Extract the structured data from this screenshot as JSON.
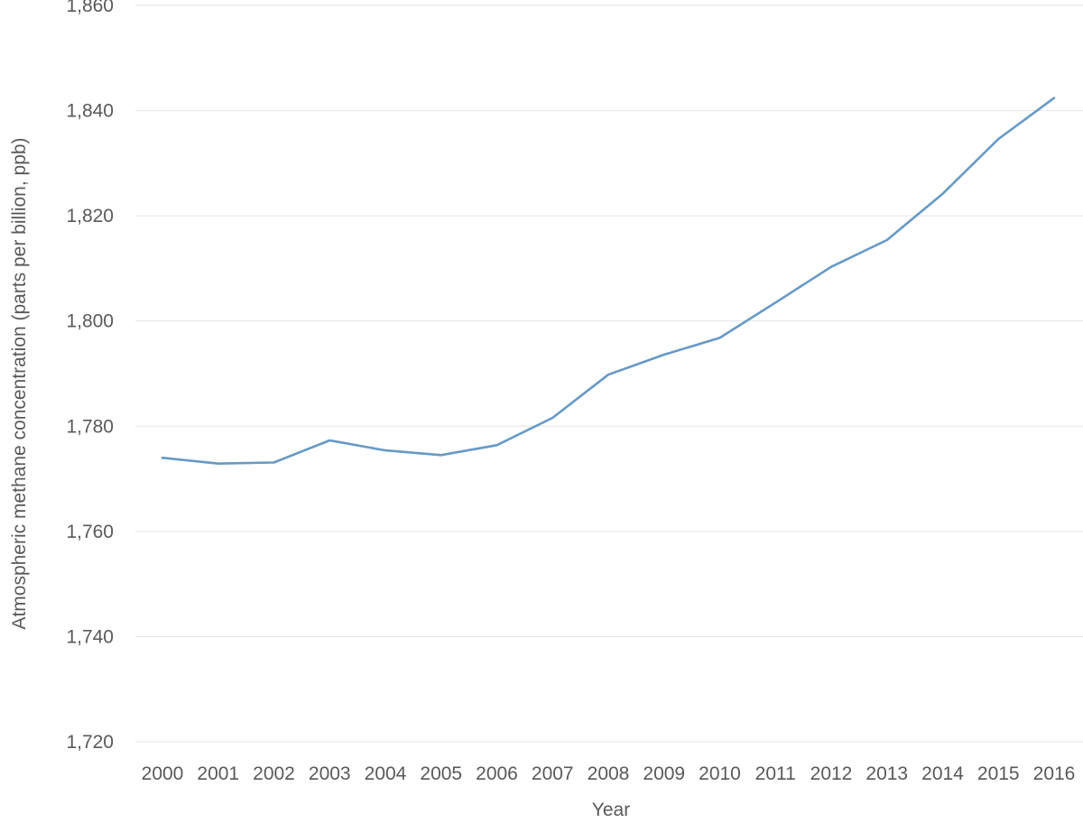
{
  "chart_data": {
    "type": "line",
    "title": "",
    "xlabel": "Year",
    "ylabel": "Atmospheric methane concentration (parts per billion, ppb)",
    "ylim": [
      1720,
      1860
    ],
    "y_ticks": [
      1720,
      1740,
      1760,
      1780,
      1800,
      1820,
      1840,
      1860
    ],
    "y_tick_labels": [
      "1,720",
      "1,740",
      "1,760",
      "1,780",
      "1,800",
      "1,820",
      "1,840",
      "1,860"
    ],
    "categories": [
      "2000",
      "2001",
      "2002",
      "2003",
      "2004",
      "2005",
      "2006",
      "2007",
      "2008",
      "2009",
      "2010",
      "2011",
      "2012",
      "2013",
      "2014",
      "2015",
      "2016"
    ],
    "series": [
      {
        "values": [
          1774.0,
          1772.9,
          1773.1,
          1777.3,
          1775.4,
          1774.5,
          1776.4,
          1781.6,
          1789.8,
          1793.6,
          1796.8,
          1803.5,
          1810.3,
          1815.4,
          1824.2,
          1834.6,
          1842.4
        ],
        "color": "#6699c6"
      }
    ],
    "grid": true,
    "legend": "none"
  }
}
